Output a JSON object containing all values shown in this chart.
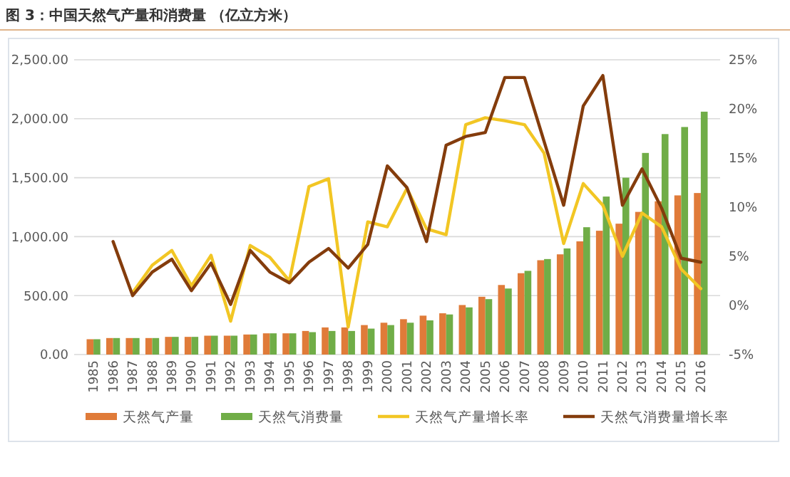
{
  "chart_data": {
    "type": "bar",
    "title": "图 3：中国天然气产量和消费量 （亿立方米）",
    "categories": [
      "1985",
      "1986",
      "1987",
      "1988",
      "1989",
      "1990",
      "1991",
      "1992",
      "1993",
      "1994",
      "1995",
      "1996",
      "1997",
      "1998",
      "1999",
      "2000",
      "2001",
      "2002",
      "2003",
      "2004",
      "2005",
      "2006",
      "2007",
      "2008",
      "2009",
      "2010",
      "2011",
      "2012",
      "2013",
      "2014",
      "2015",
      "2016"
    ],
    "series": [
      {
        "name": "天然气产量",
        "color": "#e07b39",
        "values": [
          130,
          140,
          140,
          140,
          150,
          150,
          160,
          160,
          170,
          180,
          180,
          200,
          230,
          230,
          250,
          270,
          300,
          330,
          350,
          420,
          490,
          590,
          690,
          800,
          850,
          960,
          1050,
          1110,
          1210,
          1300,
          1350,
          1370
        ]
      },
      {
        "name": "天然气消费量",
        "color": "#70ad47",
        "values": [
          130,
          140,
          140,
          140,
          150,
          150,
          160,
          160,
          170,
          180,
          180,
          190,
          200,
          200,
          220,
          250,
          270,
          290,
          340,
          400,
          470,
          560,
          710,
          810,
          900,
          1080,
          1340,
          1500,
          1710,
          1870,
          1930,
          2060
        ]
      },
      {
        "name": "天然气产量增长率",
        "type": "line",
        "axis": "y2",
        "color": "#f2c624",
        "values": [
          null,
          null,
          1.3,
          4.1,
          5.6,
          2.0,
          5.1,
          -1.6,
          6.1,
          4.9,
          2.5,
          12.1,
          12.9,
          -2.2,
          8.5,
          8.0,
          11.9,
          7.8,
          7.2,
          18.4,
          19.1,
          18.8,
          18.4,
          15.5,
          6.3,
          12.4,
          10.2,
          5.0,
          9.4,
          8.0,
          3.7,
          1.7
        ]
      },
      {
        "name": "天然气消费量增长率",
        "type": "line",
        "axis": "y2",
        "color": "#843c0c",
        "values": [
          null,
          6.5,
          1.0,
          3.4,
          4.7,
          1.5,
          4.3,
          0.1,
          5.6,
          3.4,
          2.3,
          4.4,
          5.8,
          3.8,
          6.2,
          14.2,
          12.0,
          6.5,
          16.3,
          17.2,
          17.6,
          23.2,
          23.2,
          16.7,
          10.2,
          20.3,
          23.4,
          10.2,
          13.9,
          9.9,
          4.8,
          4.4
        ]
      }
    ],
    "ylim": [
      0,
      2500
    ],
    "yticks": [
      {
        "value": 0,
        "label": "0.00"
      },
      {
        "value": 500,
        "label": "500.00"
      },
      {
        "value": 1000,
        "label": "1,000.00"
      },
      {
        "value": 1500,
        "label": "1,500.00"
      },
      {
        "value": 2000,
        "label": "2,000.00"
      },
      {
        "value": 2500,
        "label": "2,500.00"
      }
    ],
    "y2lim": [
      -5,
      25
    ],
    "y2ticks": [
      {
        "value": -5,
        "label": "-5%"
      },
      {
        "value": 0,
        "label": "0%"
      },
      {
        "value": 5,
        "label": "5%"
      },
      {
        "value": 10,
        "label": "10%"
      },
      {
        "value": 15,
        "label": "15%"
      },
      {
        "value": 20,
        "label": "20%"
      },
      {
        "value": 25,
        "label": "25%"
      }
    ],
    "grid": "y",
    "legend": "bottom",
    "line_style": "solid",
    "marker": "none"
  }
}
